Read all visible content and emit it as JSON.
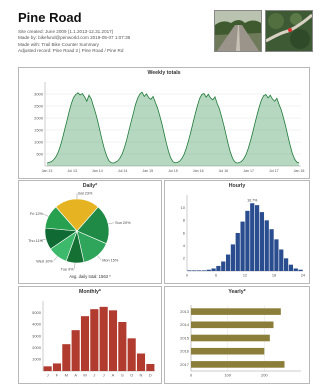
{
  "header": {
    "title": "Pine Road",
    "info_lines": [
      "Site created: June 2009 (1.1.2013-12.31.2017)",
      "Made by: bikefund@penworld.com 2019-05-07 1:07:38",
      "Made with: Trail Bike Counter Summary",
      "Adjusted record: Pine Road 2 | Pine Road / Pine Rd"
    ]
  },
  "colors": {
    "weekly_line": "#1f7a3a",
    "weekly_fill": "#2f8f4a",
    "pie": [
      "#e6b422",
      "#1e8a45",
      "#2ea55a",
      "#157034",
      "#3cb96a",
      "#0f6b33",
      "#27a04f"
    ],
    "hourly_bar": "#2a4d8f",
    "monthly_bar": "#b23b2f",
    "yearly_bar": "#8b7d3a"
  },
  "chart_data": [
    {
      "type": "area",
      "title": "Weekly totals",
      "ylim": [
        0,
        3500
      ],
      "yticks": [
        "500",
        "1000",
        "1500",
        "2000",
        "2500",
        "3000"
      ],
      "xticks": [
        "Jan 13",
        "Jul 13",
        "Jan 14",
        "Jul 14",
        "Jan 15",
        "Jul 15",
        "Jan 16",
        "Jul 16",
        "Jan 17",
        "Jul 17",
        "Jan 18"
      ],
      "values": [
        120,
        150,
        180,
        260,
        380,
        560,
        820,
        1150,
        1520,
        1880,
        2260,
        2600,
        2850,
        2980,
        3050,
        2960,
        3020,
        2880,
        2700,
        2950,
        2800,
        2500,
        2200,
        1850,
        1450,
        1050,
        700,
        420,
        220,
        140,
        120,
        160,
        210,
        330,
        500,
        760,
        1080,
        1450,
        1820,
        2180,
        2550,
        2820,
        3000,
        3080,
        2900,
        3010,
        2850,
        2780,
        2900,
        2650,
        2420,
        2100,
        1750,
        1350,
        950,
        600,
        330,
        180,
        130,
        150,
        200,
        310,
        480,
        740,
        1050,
        1400,
        1780,
        2150,
        2500,
        2800,
        2980,
        3020,
        2870,
        2990,
        2830,
        2760,
        2880,
        2600,
        2380,
        2050,
        1700,
        1300,
        900,
        560,
        310,
        170,
        120,
        140,
        190,
        300,
        470,
        720,
        1030,
        1380,
        1760,
        2120,
        2460,
        2750,
        2930,
        2980,
        2840,
        2950,
        2790,
        2700,
        2820,
        2560,
        2330,
        2000,
        1640,
        1240,
        860,
        520,
        290,
        160,
        130
      ]
    },
    {
      "type": "pie",
      "title": "Daily*",
      "footnote": "Avg. daily total: 1563 *",
      "labels": [
        "Sat 23%",
        "Sun 20%",
        "Mon 15%",
        "Tue 9%",
        "Wed 10%",
        "Thu 11%",
        "Fri 12%"
      ],
      "values": [
        23,
        20,
        15,
        9,
        10,
        11,
        12
      ]
    },
    {
      "type": "bar",
      "title": "Hourly",
      "annotation": "10.7%",
      "ylim": [
        0,
        12
      ],
      "yticks": [
        "2",
        "4",
        "6",
        "8",
        "10"
      ],
      "xticks": [
        "0",
        "6",
        "12",
        "18",
        "24"
      ],
      "values": [
        0.1,
        0.1,
        0.1,
        0.1,
        0.2,
        0.4,
        0.8,
        1.5,
        2.6,
        4.2,
        6.0,
        7.8,
        9.5,
        10.7,
        10.4,
        9.3,
        8.0,
        6.6,
        5.0,
        3.4,
        2.0,
        1.0,
        0.4,
        0.2
      ]
    },
    {
      "type": "bar",
      "title": "Monthly*",
      "ylim": [
        0,
        6000
      ],
      "yticks": [
        "1000",
        "2000",
        "3000",
        "4000",
        "5000"
      ],
      "categories": [
        "J",
        "F",
        "M",
        "A",
        "M",
        "J",
        "J",
        "A",
        "S",
        "O",
        "N",
        "D"
      ],
      "values": [
        400,
        650,
        2300,
        3500,
        4700,
        5300,
        5500,
        5200,
        4200,
        2800,
        1500,
        600
      ]
    },
    {
      "type": "bar",
      "title": "Yearly*",
      "xlim": [
        0,
        300
      ],
      "xticks": [
        "0",
        "100",
        "200"
      ],
      "categories": [
        "2013",
        "2014",
        "2015",
        "2016",
        "2017"
      ],
      "values": [
        245,
        225,
        215,
        200,
        255
      ]
    }
  ]
}
